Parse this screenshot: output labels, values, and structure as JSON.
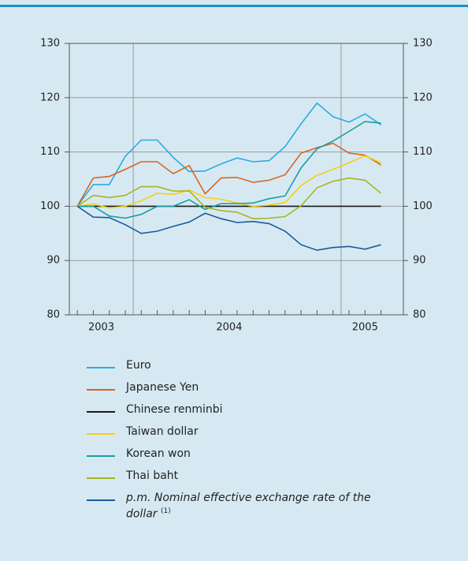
{
  "chart_data": {
    "type": "line",
    "x": [
      0,
      1,
      2,
      3,
      4,
      5,
      6,
      7,
      8,
      9,
      10,
      11,
      12,
      13,
      14,
      15,
      16,
      17,
      18,
      19
    ],
    "xlim": [
      -0.5,
      20.4
    ],
    "xticks": [
      {
        "value": 1.5,
        "label": "2003"
      },
      {
        "value": 9.5,
        "label": "2004"
      },
      {
        "value": 18,
        "label": "2005"
      }
    ],
    "xgrid": [
      3.5,
      16.5
    ],
    "ylim": [
      80,
      130
    ],
    "yticks": [
      80,
      90,
      100,
      110,
      120,
      130
    ],
    "y2lim": [
      80,
      130
    ],
    "y2ticks": [
      80,
      90,
      100,
      110,
      120,
      130
    ],
    "grid": true,
    "series": [
      {
        "name": "Euro",
        "color": "#29abe2",
        "values": [
          100,
          104,
          104,
          109.2,
          112.2,
          112.2,
          109,
          106.4,
          106.5,
          107.8,
          108.9,
          108.2,
          108.4,
          111,
          115.2,
          119,
          116.5,
          115.5,
          117,
          115
        ]
      },
      {
        "name": "Japanese Yen",
        "color": "#d9641e",
        "values": [
          100,
          105.2,
          105.5,
          106.8,
          108.2,
          108.2,
          106,
          107.5,
          102.3,
          105.2,
          105.3,
          104.4,
          104.8,
          105.8,
          109.8,
          110.8,
          111.6,
          109.8,
          109.4,
          107.6
        ]
      },
      {
        "name": "Chinese renminbi",
        "color": "#1a1a1a",
        "values": [
          100,
          100,
          100,
          100,
          100,
          100,
          100,
          100,
          100,
          100,
          100,
          100,
          100,
          100,
          100,
          100,
          100,
          100,
          100,
          100
        ]
      },
      {
        "name": "Taiwan dollar",
        "color": "#f5cf14",
        "values": [
          100,
          100.4,
          99.7,
          100,
          101,
          102.4,
          102.2,
          103,
          101.6,
          101.3,
          100.6,
          100,
          100.2,
          100.7,
          103.8,
          105.7,
          106.8,
          108,
          109.3,
          108
        ]
      },
      {
        "name": "Korean won",
        "color": "#1a9ea0",
        "values": [
          100,
          100,
          98.2,
          97.8,
          98.5,
          100,
          100,
          101.2,
          99.4,
          100.5,
          100.5,
          100.6,
          101.4,
          101.9,
          107.1,
          110.6,
          112,
          113.8,
          115.6,
          115.3
        ]
      },
      {
        "name": "Thai baht",
        "color": "#a8b520",
        "values": [
          100,
          102,
          101.6,
          102,
          103.6,
          103.6,
          102.8,
          102.8,
          99.8,
          99.2,
          98.9,
          97.7,
          97.8,
          98.1,
          100.1,
          103.4,
          104.6,
          105.2,
          104.8,
          102.4
        ]
      },
      {
        "name": "p.m. Nominal effective exchange rate of the dollar",
        "italic": true,
        "note": "(1)",
        "color": "#1a5a9c",
        "values": [
          100,
          98,
          97.9,
          96.6,
          95,
          95.4,
          96.3,
          97.1,
          98.7,
          97.7,
          97,
          97.2,
          96.8,
          95.4,
          92.9,
          91.9,
          92.4,
          92.6,
          92.1,
          92.9
        ]
      }
    ]
  }
}
